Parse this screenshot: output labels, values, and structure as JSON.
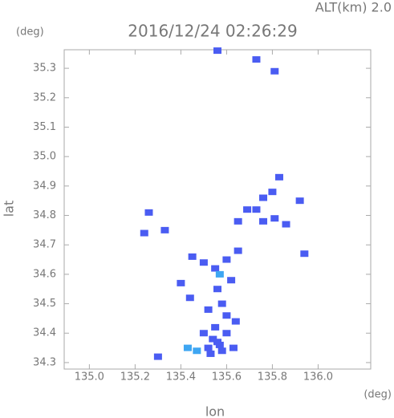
{
  "chart_data": {
    "type": "scatter",
    "title": "2016/12/24 02:26:29",
    "annotation": "ALT(km) 2.0",
    "y_unit": "(deg)",
    "x_unit": "(deg)",
    "x_label": "lon",
    "y_label": "lat",
    "xlim": [
      134.89,
      136.23
    ],
    "ylim": [
      34.278,
      35.363
    ],
    "xticks": [
      {
        "value": 135.0,
        "label": "135.0"
      },
      135.2,
      135.4,
      135.6,
      135.8,
      {
        "value": 136.0,
        "label": "136.0"
      }
    ],
    "yticks": [
      34.3,
      34.4,
      34.5,
      34.6,
      34.7,
      34.8,
      34.9,
      {
        "value": 35.0,
        "label": "35.0"
      },
      35.1,
      35.2,
      35.3
    ],
    "series": [
      {
        "color": "#4a5cf2",
        "x": [
          135.56,
          135.73,
          135.81,
          135.83,
          135.8,
          135.76,
          135.92,
          135.69,
          135.65,
          135.81,
          135.76,
          135.73,
          135.86,
          135.26,
          135.33,
          135.24,
          135.94,
          135.45,
          135.5,
          135.55,
          135.6,
          135.65,
          135.62,
          135.56,
          135.58,
          135.52,
          135.6,
          135.64,
          135.55,
          135.6,
          135.56,
          135.52,
          135.58,
          135.63,
          135.5,
          135.4,
          135.44,
          135.3,
          135.54,
          135.57,
          135.53
        ],
        "values": [
          35.36,
          35.33,
          35.29,
          34.93,
          34.88,
          34.86,
          34.85,
          34.82,
          34.78,
          34.79,
          34.78,
          34.82,
          34.77,
          34.81,
          34.75,
          34.74,
          34.67,
          34.66,
          34.64,
          34.62,
          34.65,
          34.68,
          34.58,
          34.55,
          34.5,
          34.48,
          34.46,
          34.44,
          34.42,
          34.4,
          34.37,
          34.35,
          34.34,
          34.35,
          34.4,
          34.57,
          34.52,
          34.32,
          34.38,
          34.36,
          34.33
        ]
      },
      {
        "color": "#3ea6f2",
        "x": [
          135.43,
          135.57,
          135.47
        ],
        "values": [
          34.35,
          34.6,
          34.34
        ]
      }
    ]
  }
}
